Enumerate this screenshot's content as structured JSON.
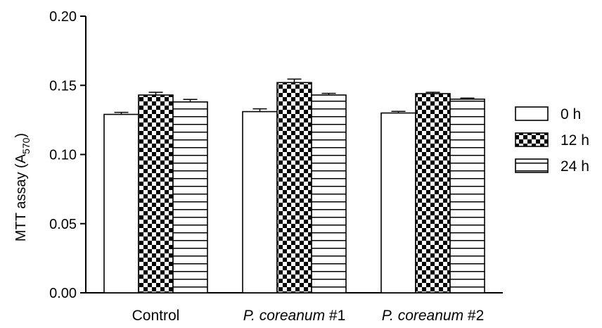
{
  "chart_data": {
    "type": "bar",
    "ylabel": "MTT assay (A",
    "ylabel_sub": "570",
    "ylabel_close": ")",
    "ylim": [
      0,
      0.2
    ],
    "yticks": [
      "0.00",
      "0.05",
      "0.10",
      "0.15",
      "0.20"
    ],
    "categories": [
      {
        "prefix": "",
        "italic": "",
        "suffix": "Control"
      },
      {
        "prefix": "",
        "italic": "P. coreanum",
        "suffix": " #1"
      },
      {
        "prefix": "",
        "italic": "P. coreanum",
        "suffix": " #2"
      }
    ],
    "series": [
      {
        "name": "0 h",
        "pattern": "plain",
        "values": [
          0.129,
          0.131,
          0.13
        ],
        "errors": [
          0.0015,
          0.002,
          0.0012
        ]
      },
      {
        "name": "12 h",
        "pattern": "checker",
        "values": [
          0.143,
          0.152,
          0.144
        ],
        "errors": [
          0.002,
          0.0025,
          0.001
        ]
      },
      {
        "name": "24 h",
        "pattern": "hlines",
        "values": [
          0.138,
          0.143,
          0.14
        ],
        "errors": [
          0.0018,
          0.0012,
          0.0008
        ]
      }
    ],
    "legend_position": "right",
    "grid": false
  }
}
